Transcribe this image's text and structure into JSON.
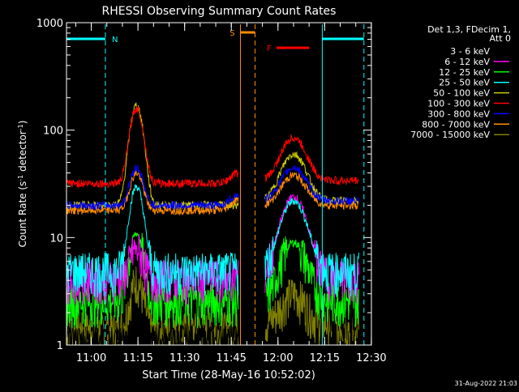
{
  "chart_data": {
    "type": "line",
    "title": "RHESSI Observing Summary Count Rates",
    "xlabel": "Start Time (28-May-16 10:52:02)",
    "ylabel_prefix": "Count Rate (s",
    "ylabel_sup": "-1",
    "ylabel_mid": " detector",
    "ylabel_sup2": "-1",
    "ylabel_suffix": ")",
    "y_scale": "log",
    "ylim": [
      1,
      1000
    ],
    "xlim_minutes_since_10_52_02": [
      0,
      98
    ],
    "x_ticks": [
      {
        "label": "11:00",
        "minute": 7.97
      },
      {
        "label": "11:15",
        "minute": 22.97
      },
      {
        "label": "11:30",
        "minute": 37.97
      },
      {
        "label": "11:45",
        "minute": 52.97
      },
      {
        "label": "12:00",
        "minute": 67.97
      },
      {
        "label": "12:15",
        "minute": 82.97
      },
      {
        "label": "12:30",
        "minute": 97.97
      }
    ],
    "y_ticks": [
      {
        "label": "1",
        "value": 1
      },
      {
        "label": "10",
        "value": 10
      },
      {
        "label": "100",
        "value": 100
      },
      {
        "label": "1000",
        "value": 1000
      }
    ],
    "legend_header": [
      "Det 1,3, FDecim 1,",
      "Att 0"
    ],
    "legend_placement": "top-right-outside",
    "series": [
      {
        "name": "3 - 6 keV",
        "color": "#000000",
        "level1": 1.1,
        "level2": 2.0,
        "peak2": 25
      },
      {
        "name": "6 - 12 keV",
        "color": "#ff00ff",
        "level1": 4.3,
        "peak1": 8,
        "level2": 4.3,
        "peak2": 24
      },
      {
        "name": "12 - 25 keV",
        "color": "#00ff00",
        "level1": 2.6,
        "peak1": 11,
        "level2": 2.6,
        "peak2": 9
      },
      {
        "name": "25 - 50 keV",
        "color": "#00ffff",
        "level1": 5.0,
        "peak1": 30,
        "level2": 5.0,
        "peak2": 22
      },
      {
        "name": "50 - 100 keV",
        "color": "#cccc00",
        "level1": 20,
        "peak1": 170,
        "level2": 22,
        "peak2": 60
      },
      {
        "name": "100 - 300 keV",
        "color": "#ff0000",
        "level1": 32,
        "peak1": 160,
        "level2": 34,
        "peak2": 85
      },
      {
        "name": "300 - 800 keV",
        "color": "#0000ff",
        "level1": 20,
        "peak1": 45,
        "level2": 22,
        "peak2": 45
      },
      {
        "name": "800 - 7000 keV",
        "color": "#ff8c00",
        "level1": 18,
        "peak1": 40,
        "level2": 20,
        "peak2": 38
      },
      {
        "name": "7000 - 15000 keV",
        "color": "#808000",
        "level1": 1.4,
        "peak1": 4,
        "level2": 1.6,
        "peak2": 3
      }
    ],
    "markers": {
      "N_label": "N",
      "S_label": "S",
      "F_label": "F",
      "night_color": "#00ffff",
      "saa_color": "#ff8c00",
      "flare_color": "#ff0000"
    },
    "timestamp": "31-Aug-2022 21:03"
  }
}
